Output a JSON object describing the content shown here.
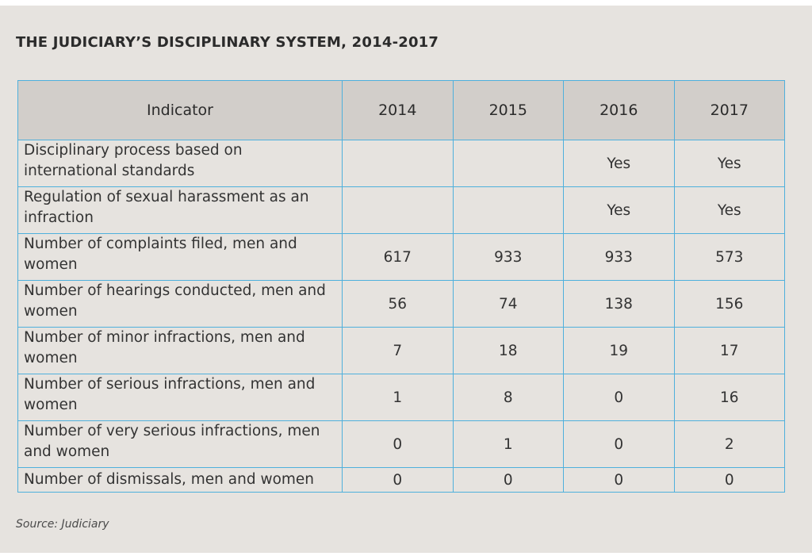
{
  "title": "THE JUDICIARY’S DISCIPLINARY SYSTEM, 2014-2017",
  "table": {
    "headers": [
      "Indicator",
      "2014",
      "2015",
      "2016",
      "2017"
    ],
    "rows": [
      [
        "Disciplinary process based on international standards",
        "",
        "",
        "Yes",
        "Yes"
      ],
      [
        "Regulation of sexual harassment as an infraction",
        "",
        "",
        "Yes",
        "Yes"
      ],
      [
        "Number of complaints filed, men and women",
        "617",
        "933",
        "933",
        "573"
      ],
      [
        "Number of hearings conducted, men and women",
        "56",
        "74",
        "138",
        "156"
      ],
      [
        "Number of minor infractions, men and women",
        "7",
        "18",
        "19",
        "17"
      ],
      [
        "Number of serious infractions, men and women",
        "1",
        "8",
        "0",
        "16"
      ],
      [
        "Number of very serious infractions, men and women",
        "0",
        "1",
        "0",
        "2"
      ],
      [
        "Number of dismissals, men and women",
        "0",
        "0",
        "0",
        "0"
      ]
    ]
  },
  "source": "Source: Judiciary",
  "colors": {
    "background": "#e6e3df",
    "header_fill": "#d2ceca",
    "grid_line": "#4fb0dc",
    "text": "#333333"
  }
}
